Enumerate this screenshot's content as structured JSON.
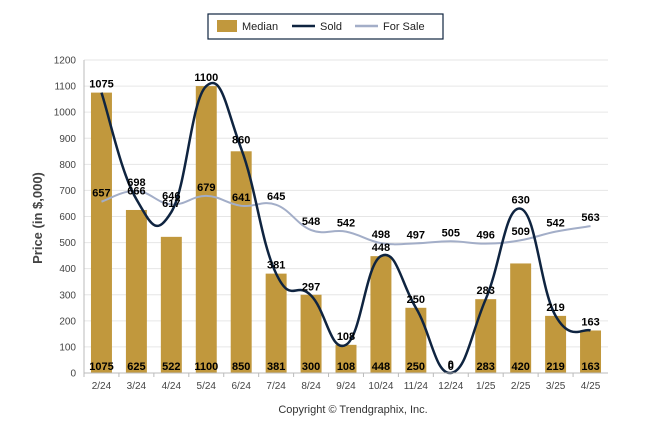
{
  "chart_data": {
    "type": "bar",
    "categories": [
      "2/24",
      "3/24",
      "4/24",
      "5/24",
      "6/24",
      "7/24",
      "8/24",
      "9/24",
      "10/24",
      "11/24",
      "12/24",
      "1/25",
      "2/25",
      "3/25",
      "4/25"
    ],
    "ylabel": "Price (in $,000)",
    "ylim": [
      0,
      1200
    ],
    "yticks": [
      0,
      100,
      200,
      300,
      400,
      500,
      600,
      700,
      800,
      900,
      1000,
      1100,
      1200
    ],
    "grid": true,
    "legend_position": "top-center",
    "series": [
      {
        "name": "Median",
        "kind": "bar",
        "color": "#C1983D",
        "values": [
          1075,
          625,
          522,
          1100,
          850,
          381,
          300,
          108,
          448,
          250,
          0,
          283,
          420,
          219,
          163
        ],
        "labels": [
          "1075",
          "625",
          "522",
          "1100",
          "850",
          "381",
          "300",
          "108",
          "448",
          "250",
          "0",
          "283",
          "420",
          "219",
          "163"
        ]
      },
      {
        "name": "Sold",
        "kind": "line",
        "color": "#0F2440",
        "values": [
          1075,
          666,
          617,
          1100,
          860,
          381,
          297,
          108,
          448,
          250,
          0,
          283,
          630,
          219,
          163
        ],
        "labels": [
          "1075",
          "666",
          "617",
          "1100",
          "860",
          "381",
          "297",
          "108",
          "448",
          "250",
          "0",
          "283",
          "630",
          "219",
          "163"
        ]
      },
      {
        "name": "For Sale",
        "kind": "line",
        "color": "#A3AEC8",
        "values": [
          657,
          698,
          646,
          679,
          641,
          645,
          548,
          542,
          498,
          497,
          505,
          496,
          509,
          542,
          563
        ],
        "labels": [
          "657",
          "698",
          "646",
          "679",
          "641",
          "645",
          "548",
          "542",
          "498",
          "497",
          "505",
          "496",
          "509",
          "542",
          "563"
        ]
      }
    ]
  },
  "copyright": "Copyright © Trendgraphix, Inc."
}
